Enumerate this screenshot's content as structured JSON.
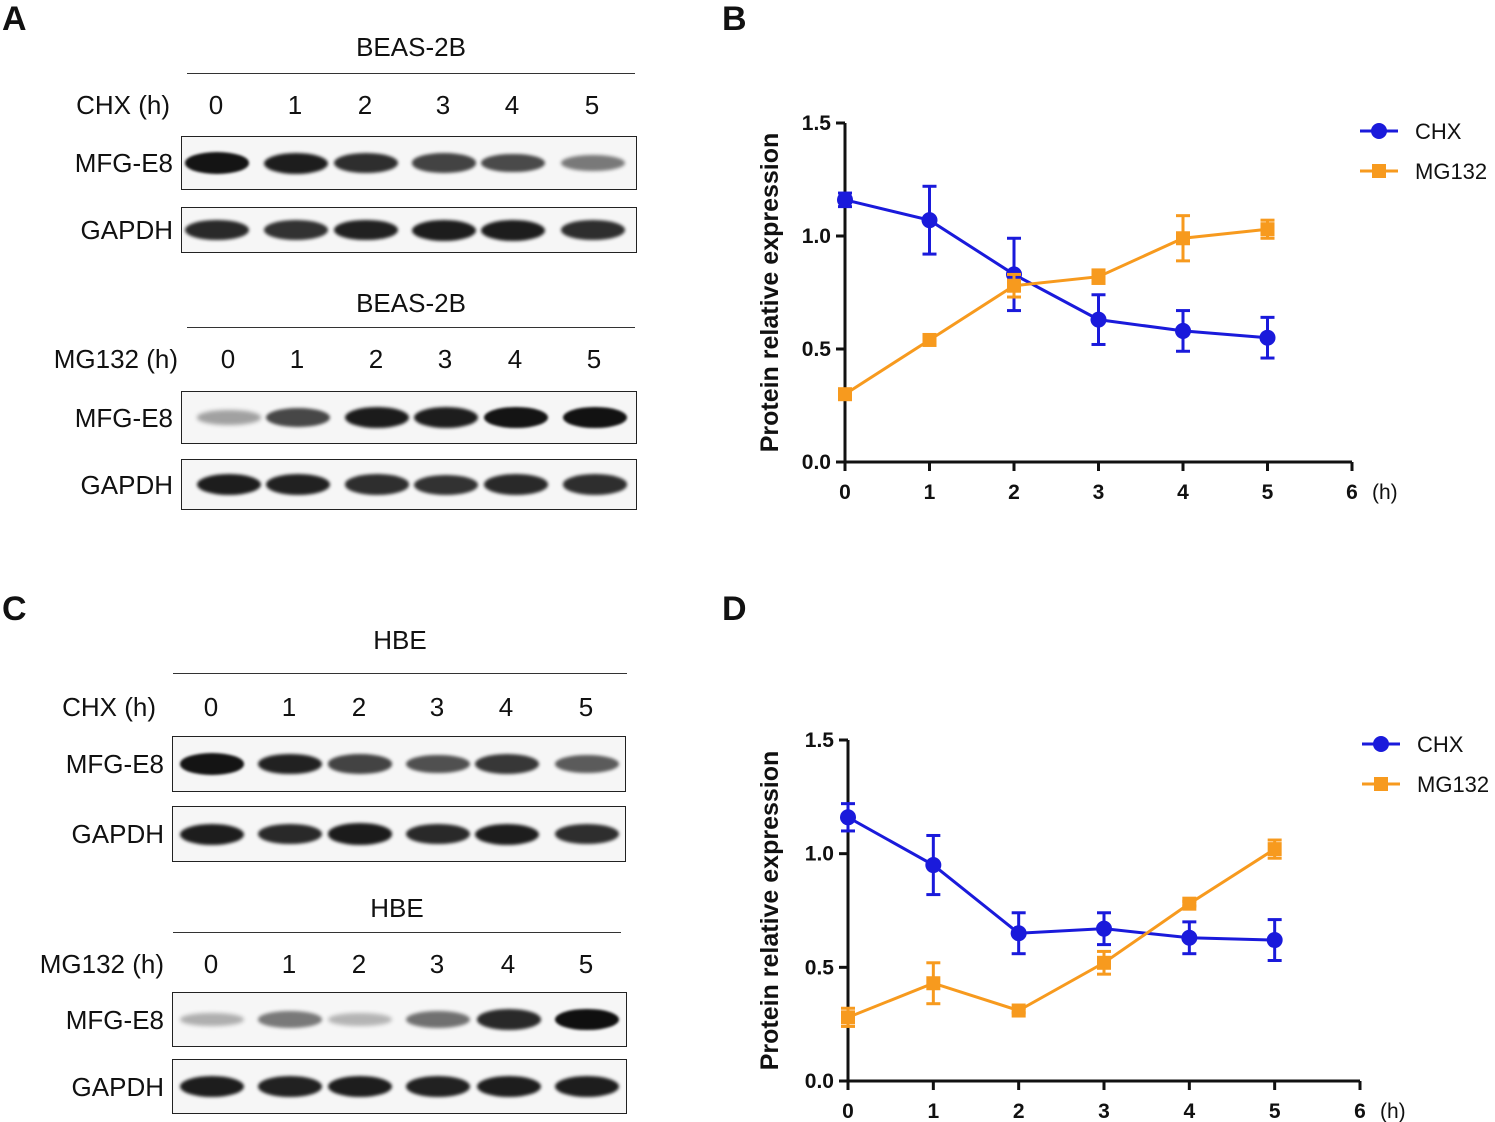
{
  "panels": {
    "A": "A",
    "B": "B",
    "C": "C",
    "D": "D"
  },
  "blots": {
    "A_top": {
      "cell_line": "BEAS-2B",
      "treatment_label": "CHX (h)",
      "lanes": [
        "0",
        "1",
        "2",
        "3",
        "4",
        "5"
      ],
      "rows": [
        {
          "label": "MFG-E8",
          "intensity": [
            0.95,
            0.9,
            0.82,
            0.72,
            0.68,
            0.45
          ]
        },
        {
          "label": "GAPDH",
          "intensity": [
            0.85,
            0.8,
            0.88,
            0.9,
            0.9,
            0.82
          ]
        }
      ]
    },
    "A_bottom": {
      "cell_line": "BEAS-2B",
      "treatment_label": "MG132 (h)",
      "lanes": [
        "0",
        "1",
        "2",
        "3",
        "4",
        "5"
      ],
      "rows": [
        {
          "label": "MFG-E8",
          "intensity": [
            0.25,
            0.7,
            0.92,
            0.9,
            0.95,
            0.96
          ]
        },
        {
          "label": "GAPDH",
          "intensity": [
            0.9,
            0.88,
            0.82,
            0.8,
            0.85,
            0.82
          ]
        }
      ]
    },
    "C_top": {
      "cell_line": "HBE",
      "treatment_label": "CHX (h)",
      "lanes": [
        "0",
        "1",
        "2",
        "3",
        "4",
        "5"
      ],
      "rows": [
        {
          "label": "MFG-E8",
          "intensity": [
            0.95,
            0.88,
            0.72,
            0.65,
            0.78,
            0.6
          ]
        },
        {
          "label": "GAPDH",
          "intensity": [
            0.9,
            0.85,
            0.92,
            0.85,
            0.9,
            0.82
          ]
        }
      ]
    },
    "C_bottom": {
      "cell_line": "HBE",
      "treatment_label": "MG132 (h)",
      "lanes": [
        "0",
        "1",
        "2",
        "3",
        "4",
        "5"
      ],
      "rows": [
        {
          "label": "MFG-E8",
          "intensity": [
            0.18,
            0.45,
            0.15,
            0.5,
            0.85,
            0.98
          ]
        },
        {
          "label": "GAPDH",
          "intensity": [
            0.9,
            0.88,
            0.9,
            0.88,
            0.9,
            0.9
          ]
        }
      ]
    }
  },
  "chart_data": [
    {
      "id": "B",
      "type": "line",
      "title": "",
      "xlabel": "",
      "x_unit": "(h)",
      "ylabel": "Protein relative expression",
      "x": [
        0,
        1,
        2,
        3,
        4,
        5
      ],
      "xlim": [
        0,
        6
      ],
      "xticks": [
        "0",
        "1",
        "2",
        "3",
        "4",
        "5",
        "6"
      ],
      "ylim": [
        0,
        1.5
      ],
      "yticks": [
        "0.0",
        "0.5",
        "1.0",
        "1.5"
      ],
      "legend_position": "top-right",
      "series": [
        {
          "name": "CHX",
          "color": "#1a1adb",
          "marker": "circle",
          "values": [
            1.16,
            1.07,
            0.83,
            0.63,
            0.58,
            0.55
          ],
          "errors": [
            0.03,
            0.15,
            0.16,
            0.11,
            0.09,
            0.09
          ]
        },
        {
          "name": "MG132",
          "color": "#f79a1e",
          "marker": "square",
          "values": [
            0.3,
            0.54,
            0.78,
            0.82,
            0.99,
            1.03
          ],
          "errors": [
            0.01,
            0.01,
            0.05,
            0.03,
            0.1,
            0.04
          ]
        }
      ]
    },
    {
      "id": "D",
      "type": "line",
      "title": "",
      "xlabel": "",
      "x_unit": "(h)",
      "ylabel": "Protein relative expression",
      "x": [
        0,
        1,
        2,
        3,
        4,
        5
      ],
      "xlim": [
        0,
        6
      ],
      "xticks": [
        "0",
        "1",
        "2",
        "3",
        "4",
        "5",
        "6"
      ],
      "ylim": [
        0,
        1.5
      ],
      "yticks": [
        "0.0",
        "0.5",
        "1.0",
        "1.5"
      ],
      "legend_position": "top-right",
      "series": [
        {
          "name": "CHX",
          "color": "#1a1adb",
          "marker": "circle",
          "values": [
            1.16,
            0.95,
            0.65,
            0.67,
            0.63,
            0.62
          ],
          "errors": [
            0.06,
            0.13,
            0.09,
            0.07,
            0.07,
            0.09
          ]
        },
        {
          "name": "MG132",
          "color": "#f79a1e",
          "marker": "square",
          "values": [
            0.28,
            0.43,
            0.31,
            0.52,
            0.78,
            1.02
          ],
          "errors": [
            0.04,
            0.09,
            0.01,
            0.05,
            0.01,
            0.04
          ]
        }
      ]
    }
  ]
}
